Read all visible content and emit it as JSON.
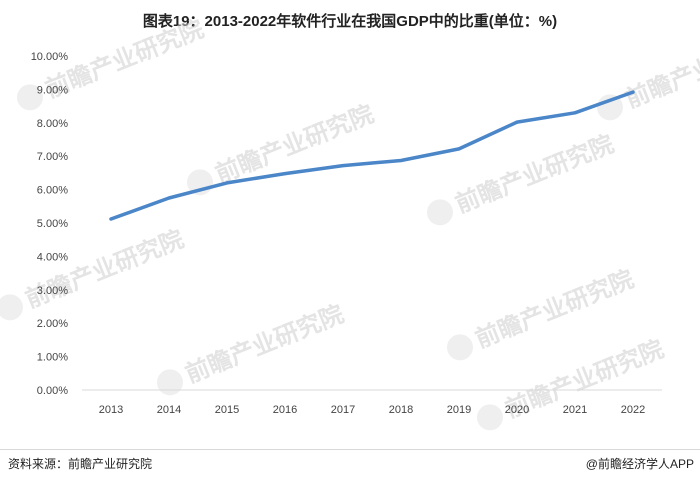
{
  "chart_data": {
    "type": "line",
    "title": "图表19：2013-2022年软件行业在我国GDP中的比重(单位：%)",
    "categories": [
      "2013",
      "2014",
      "2015",
      "2016",
      "2017",
      "2018",
      "2019",
      "2020",
      "2021",
      "2022"
    ],
    "series": [
      {
        "values": [
          5.12,
          5.75,
          6.2,
          6.48,
          6.72,
          6.87,
          7.22,
          8.02,
          8.3,
          8.92
        ],
        "color": "#4a86c8"
      }
    ],
    "ylim": [
      0,
      10
    ],
    "yticks": [
      0,
      1,
      2,
      3,
      4,
      5,
      6,
      7,
      8,
      9,
      10
    ],
    "ytick_labels": [
      "0.00%",
      "1.00%",
      "2.00%",
      "3.00%",
      "4.00%",
      "5.00%",
      "6.00%",
      "7.00%",
      "8.00%",
      "9.00%",
      "10.00%"
    ],
    "grid": false,
    "xlabel": "",
    "ylabel": ""
  },
  "footer": {
    "source": "资料来源：前瞻产业研究院",
    "brand": "@前瞻经济学人APP"
  },
  "watermark": {
    "text": "前瞻产业研究院"
  },
  "colors": {
    "line": "#4a86c8",
    "axis": "#d9d9d9"
  }
}
